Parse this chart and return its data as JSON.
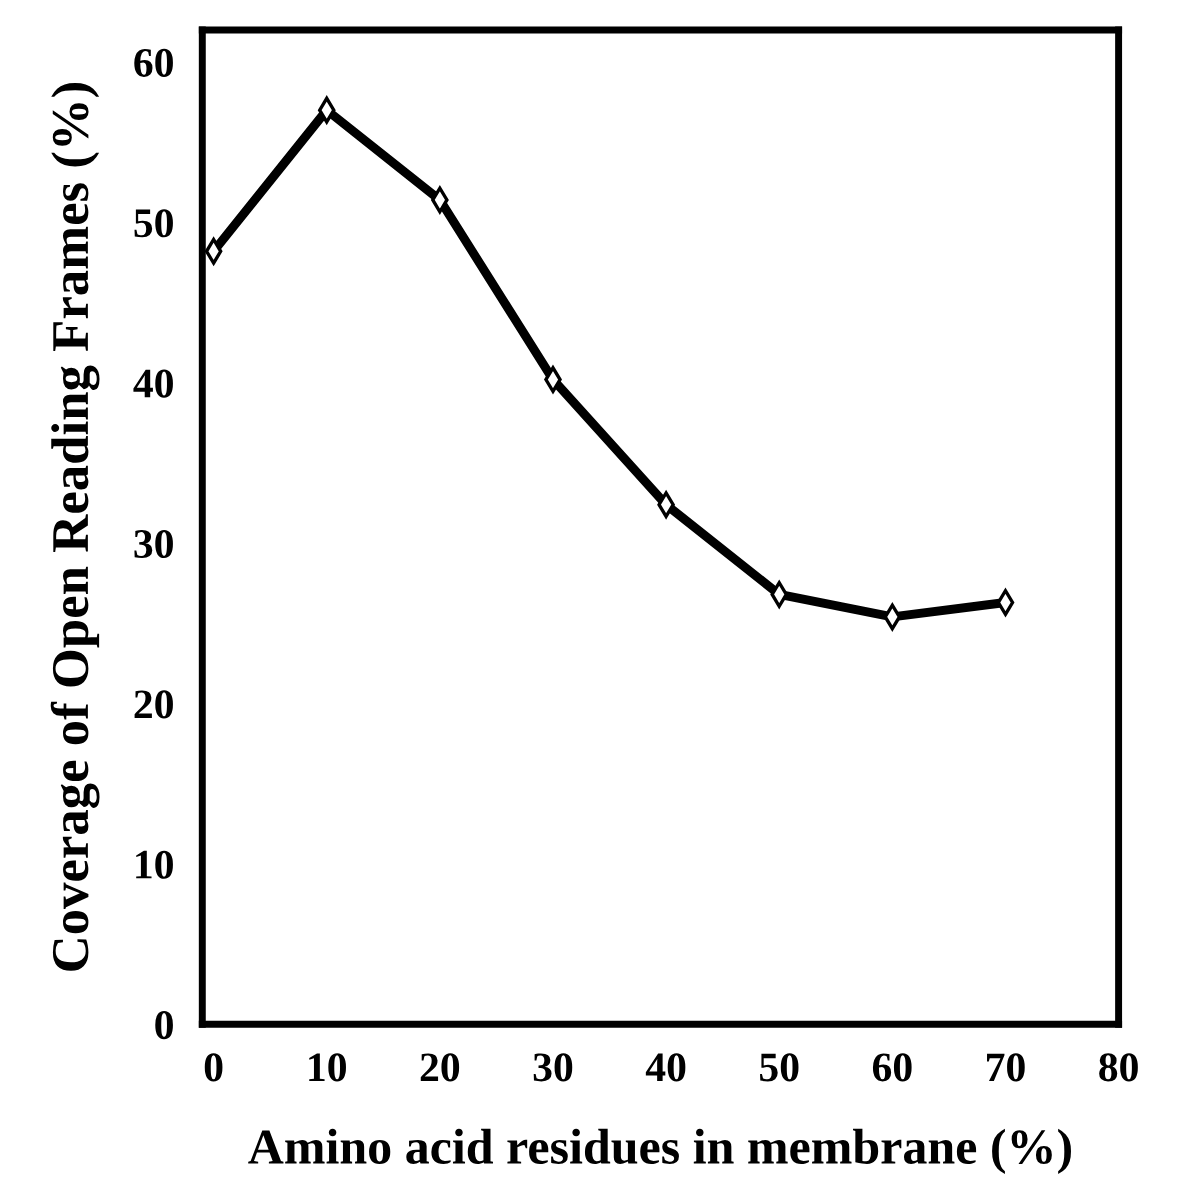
{
  "chart_data": {
    "type": "line",
    "xlabel": "Amino acid residues in membrane (%)",
    "ylabel": "Coverage of Open Reading Frames (%)",
    "x": [
      0,
      10,
      20,
      30,
      40,
      50,
      60,
      70
    ],
    "series": [
      {
        "color": "#000000",
        "values": [
          48.2,
          57.0,
          51.4,
          40.2,
          32.4,
          26.8,
          25.4,
          26.3
        ]
      }
    ],
    "xlim": [
      -1,
      80
    ],
    "xticks": [
      0,
      10,
      20,
      30,
      40,
      50,
      60,
      70,
      80
    ],
    "ylim": [
      0,
      62
    ],
    "yticks": [
      0,
      10,
      20,
      30,
      40,
      50,
      60
    ],
    "marker": "diamond",
    "line_style": "solid",
    "grid": false,
    "legend": false
  }
}
